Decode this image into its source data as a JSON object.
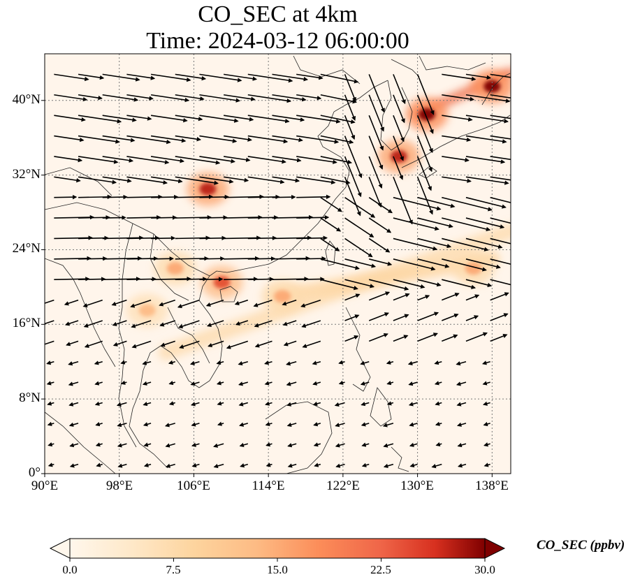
{
  "title": {
    "line1": "CO_SEC at 4km",
    "line2": "Time: 2024-03-12 06:00:00"
  },
  "map": {
    "lon_range": [
      90,
      140
    ],
    "lat_range": [
      0,
      45
    ],
    "lat_ticks": [
      "0°",
      "8°N",
      "16°N",
      "24°N",
      "32°N",
      "40°N"
    ],
    "lon_ticks": [
      "90°E",
      "98°E",
      "106°E",
      "114°E",
      "122°E",
      "130°E",
      "138°E"
    ],
    "gridlines": true,
    "field_colors": {
      "low": "#fff5eb",
      "mid": "#fdae6b",
      "high": "#d94801",
      "max": "#7f0000"
    }
  },
  "colorbar": {
    "label": "CO_SEC (ppbv)",
    "ticks": [
      "0.0",
      "7.5",
      "15.0",
      "22.5",
      "30.0"
    ],
    "range": [
      0,
      30
    ],
    "extend": "both",
    "colormap": "OrRd"
  },
  "chart_data": {
    "type": "heatmap",
    "variable": "CO_SEC",
    "units": "ppbv",
    "level": "4km",
    "time": "2024-03-12 06:00:00",
    "xlim": [
      90,
      140
    ],
    "ylim": [
      0,
      45
    ],
    "hotspots": [
      {
        "lon": 107.5,
        "lat": 30.5,
        "value": 25
      },
      {
        "lon": 109,
        "lat": 20.5,
        "value": 20
      },
      {
        "lon": 131,
        "lat": 38.5,
        "value": 30
      },
      {
        "lon": 138,
        "lat": 41.5,
        "value": 30
      },
      {
        "lon": 128,
        "lat": 34,
        "value": 25
      },
      {
        "lon": 104,
        "lat": 22,
        "value": 12
      },
      {
        "lon": 115.5,
        "lat": 19,
        "value": 12
      },
      {
        "lon": 101,
        "lat": 17.5,
        "value": 10
      },
      {
        "lon": 136,
        "lat": 22,
        "value": 12
      }
    ],
    "plumes": [
      {
        "from": [
          103,
          13
        ],
        "to": [
          140,
          26
        ],
        "value": 10
      },
      {
        "from": [
          115,
          19
        ],
        "to": [
          138,
          23
        ],
        "value": 12
      },
      {
        "from": [
          130,
          38.5
        ],
        "to": [
          140,
          43
        ],
        "value": 30
      }
    ],
    "wind_field": "quiver"
  }
}
